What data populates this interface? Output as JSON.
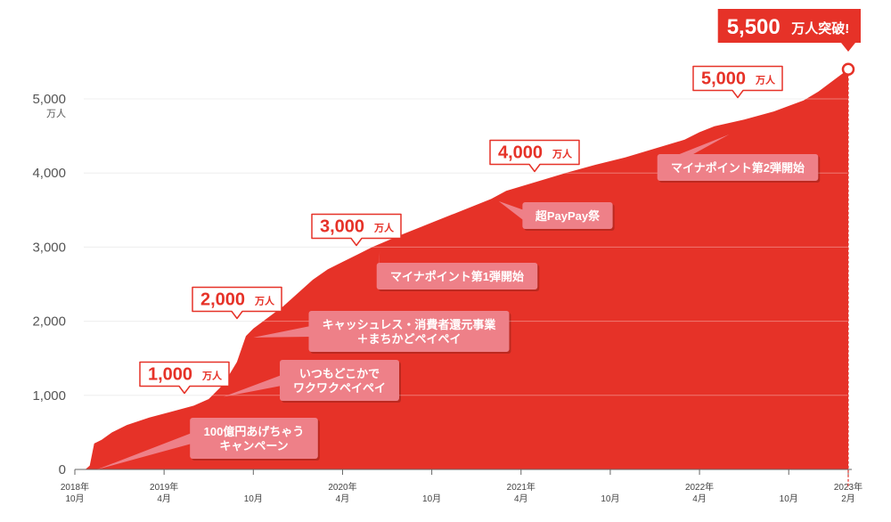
{
  "chart_data": {
    "type": "area",
    "unit": "万人",
    "ylim": [
      0,
      5600
    ],
    "y_ticks": [
      {
        "value": 0,
        "label": "0",
        "unit": ""
      },
      {
        "value": 1000,
        "label": "1,000",
        "unit": ""
      },
      {
        "value": 2000,
        "label": "2,000",
        "unit": ""
      },
      {
        "value": 3000,
        "label": "3,000",
        "unit": ""
      },
      {
        "value": 4000,
        "label": "4,000",
        "unit": ""
      },
      {
        "value": 5000,
        "label": "5,000",
        "unit": "万人"
      }
    ],
    "x_ticks": [
      {
        "month": 0,
        "lines": [
          "2018年",
          "10月"
        ]
      },
      {
        "month": 6,
        "lines": [
          "2019年",
          "4月"
        ]
      },
      {
        "month": 12,
        "lines": [
          "10月"
        ]
      },
      {
        "month": 18,
        "lines": [
          "2020年",
          "4月"
        ]
      },
      {
        "month": 24,
        "lines": [
          "10月"
        ]
      },
      {
        "month": 30,
        "lines": [
          "2021年",
          "4月"
        ]
      },
      {
        "month": 36,
        "lines": [
          "10月"
        ]
      },
      {
        "month": 42,
        "lines": [
          "2022年",
          "4月"
        ]
      },
      {
        "month": 48,
        "lines": [
          "10月"
        ]
      },
      {
        "month": 52,
        "lines": [
          "2023年",
          "2月"
        ]
      }
    ],
    "series": [
      {
        "color": "#e63228",
        "points": [
          [
            0.2,
            0
          ],
          [
            0.7,
            0
          ],
          [
            1.0,
            50
          ],
          [
            1.3,
            350
          ],
          [
            1.8,
            400
          ],
          [
            2.5,
            500
          ],
          [
            3.5,
            600
          ],
          [
            5.0,
            700
          ],
          [
            6.5,
            780
          ],
          [
            8.0,
            860
          ],
          [
            9.0,
            950
          ],
          [
            10.0,
            1150
          ],
          [
            10.9,
            1450
          ],
          [
            11.5,
            1800
          ],
          [
            12.0,
            1900
          ],
          [
            13.0,
            2050
          ],
          [
            14.0,
            2200
          ],
          [
            15.0,
            2380
          ],
          [
            16.0,
            2560
          ],
          [
            17.0,
            2700
          ],
          [
            18.0,
            2800
          ],
          [
            19.0,
            2900
          ],
          [
            20.0,
            3000
          ],
          [
            22.0,
            3170
          ],
          [
            24.0,
            3330
          ],
          [
            26.0,
            3490
          ],
          [
            28.0,
            3650
          ],
          [
            29.0,
            3760
          ],
          [
            31.0,
            3880
          ],
          [
            33.0,
            4000
          ],
          [
            35.0,
            4110
          ],
          [
            37.0,
            4210
          ],
          [
            39.0,
            4330
          ],
          [
            41.0,
            4450
          ],
          [
            42.0,
            4550
          ],
          [
            43.0,
            4630
          ],
          [
            45.0,
            4720
          ],
          [
            47.0,
            4830
          ],
          [
            49.0,
            4980
          ],
          [
            50.0,
            5100
          ],
          [
            51.0,
            5250
          ],
          [
            52.0,
            5400
          ]
        ]
      }
    ],
    "milestones": [
      {
        "value": "1,000",
        "unit": "万人",
        "pointer": [
          9.0,
          970
        ]
      },
      {
        "value": "2,000",
        "unit": "万人",
        "pointer": [
          11.5,
          1800
        ]
      },
      {
        "value": "3,000",
        "unit": "万人",
        "pointer": [
          19.0,
          2900
        ]
      },
      {
        "value": "4,000",
        "unit": "万人",
        "pointer": [
          32.5,
          3970
        ]
      },
      {
        "value": "5,000",
        "unit": "万人",
        "pointer": [
          48.0,
          4900
        ]
      }
    ],
    "headline": {
      "value": "5,500",
      "unit": "万人突破!",
      "pointer": [
        52.0,
        5400
      ]
    },
    "events": [
      {
        "lines": [
          "100億円あげちゃう",
          "キャンペーン"
        ],
        "pointer": [
          1.5,
          0
        ]
      },
      {
        "lines": [
          "いつもどこかで",
          "ワクワクペイペイ"
        ],
        "pointer": [
          10.0,
          980
        ]
      },
      {
        "lines": [
          "キャッシュレス・消費者還元事業",
          "＋まちかどペイペイ"
        ],
        "pointer": [
          12.0,
          1780
        ]
      },
      {
        "lines": [
          "マイナポイント第1弾開始"
        ],
        "pointer": [
          20.5,
          2960
        ]
      },
      {
        "lines": [
          "超PayPay祭"
        ],
        "pointer": [
          28.5,
          3620
        ]
      },
      {
        "lines": [
          "マイナポイント第2弾開始"
        ],
        "pointer": [
          44.0,
          4520
        ]
      }
    ]
  }
}
